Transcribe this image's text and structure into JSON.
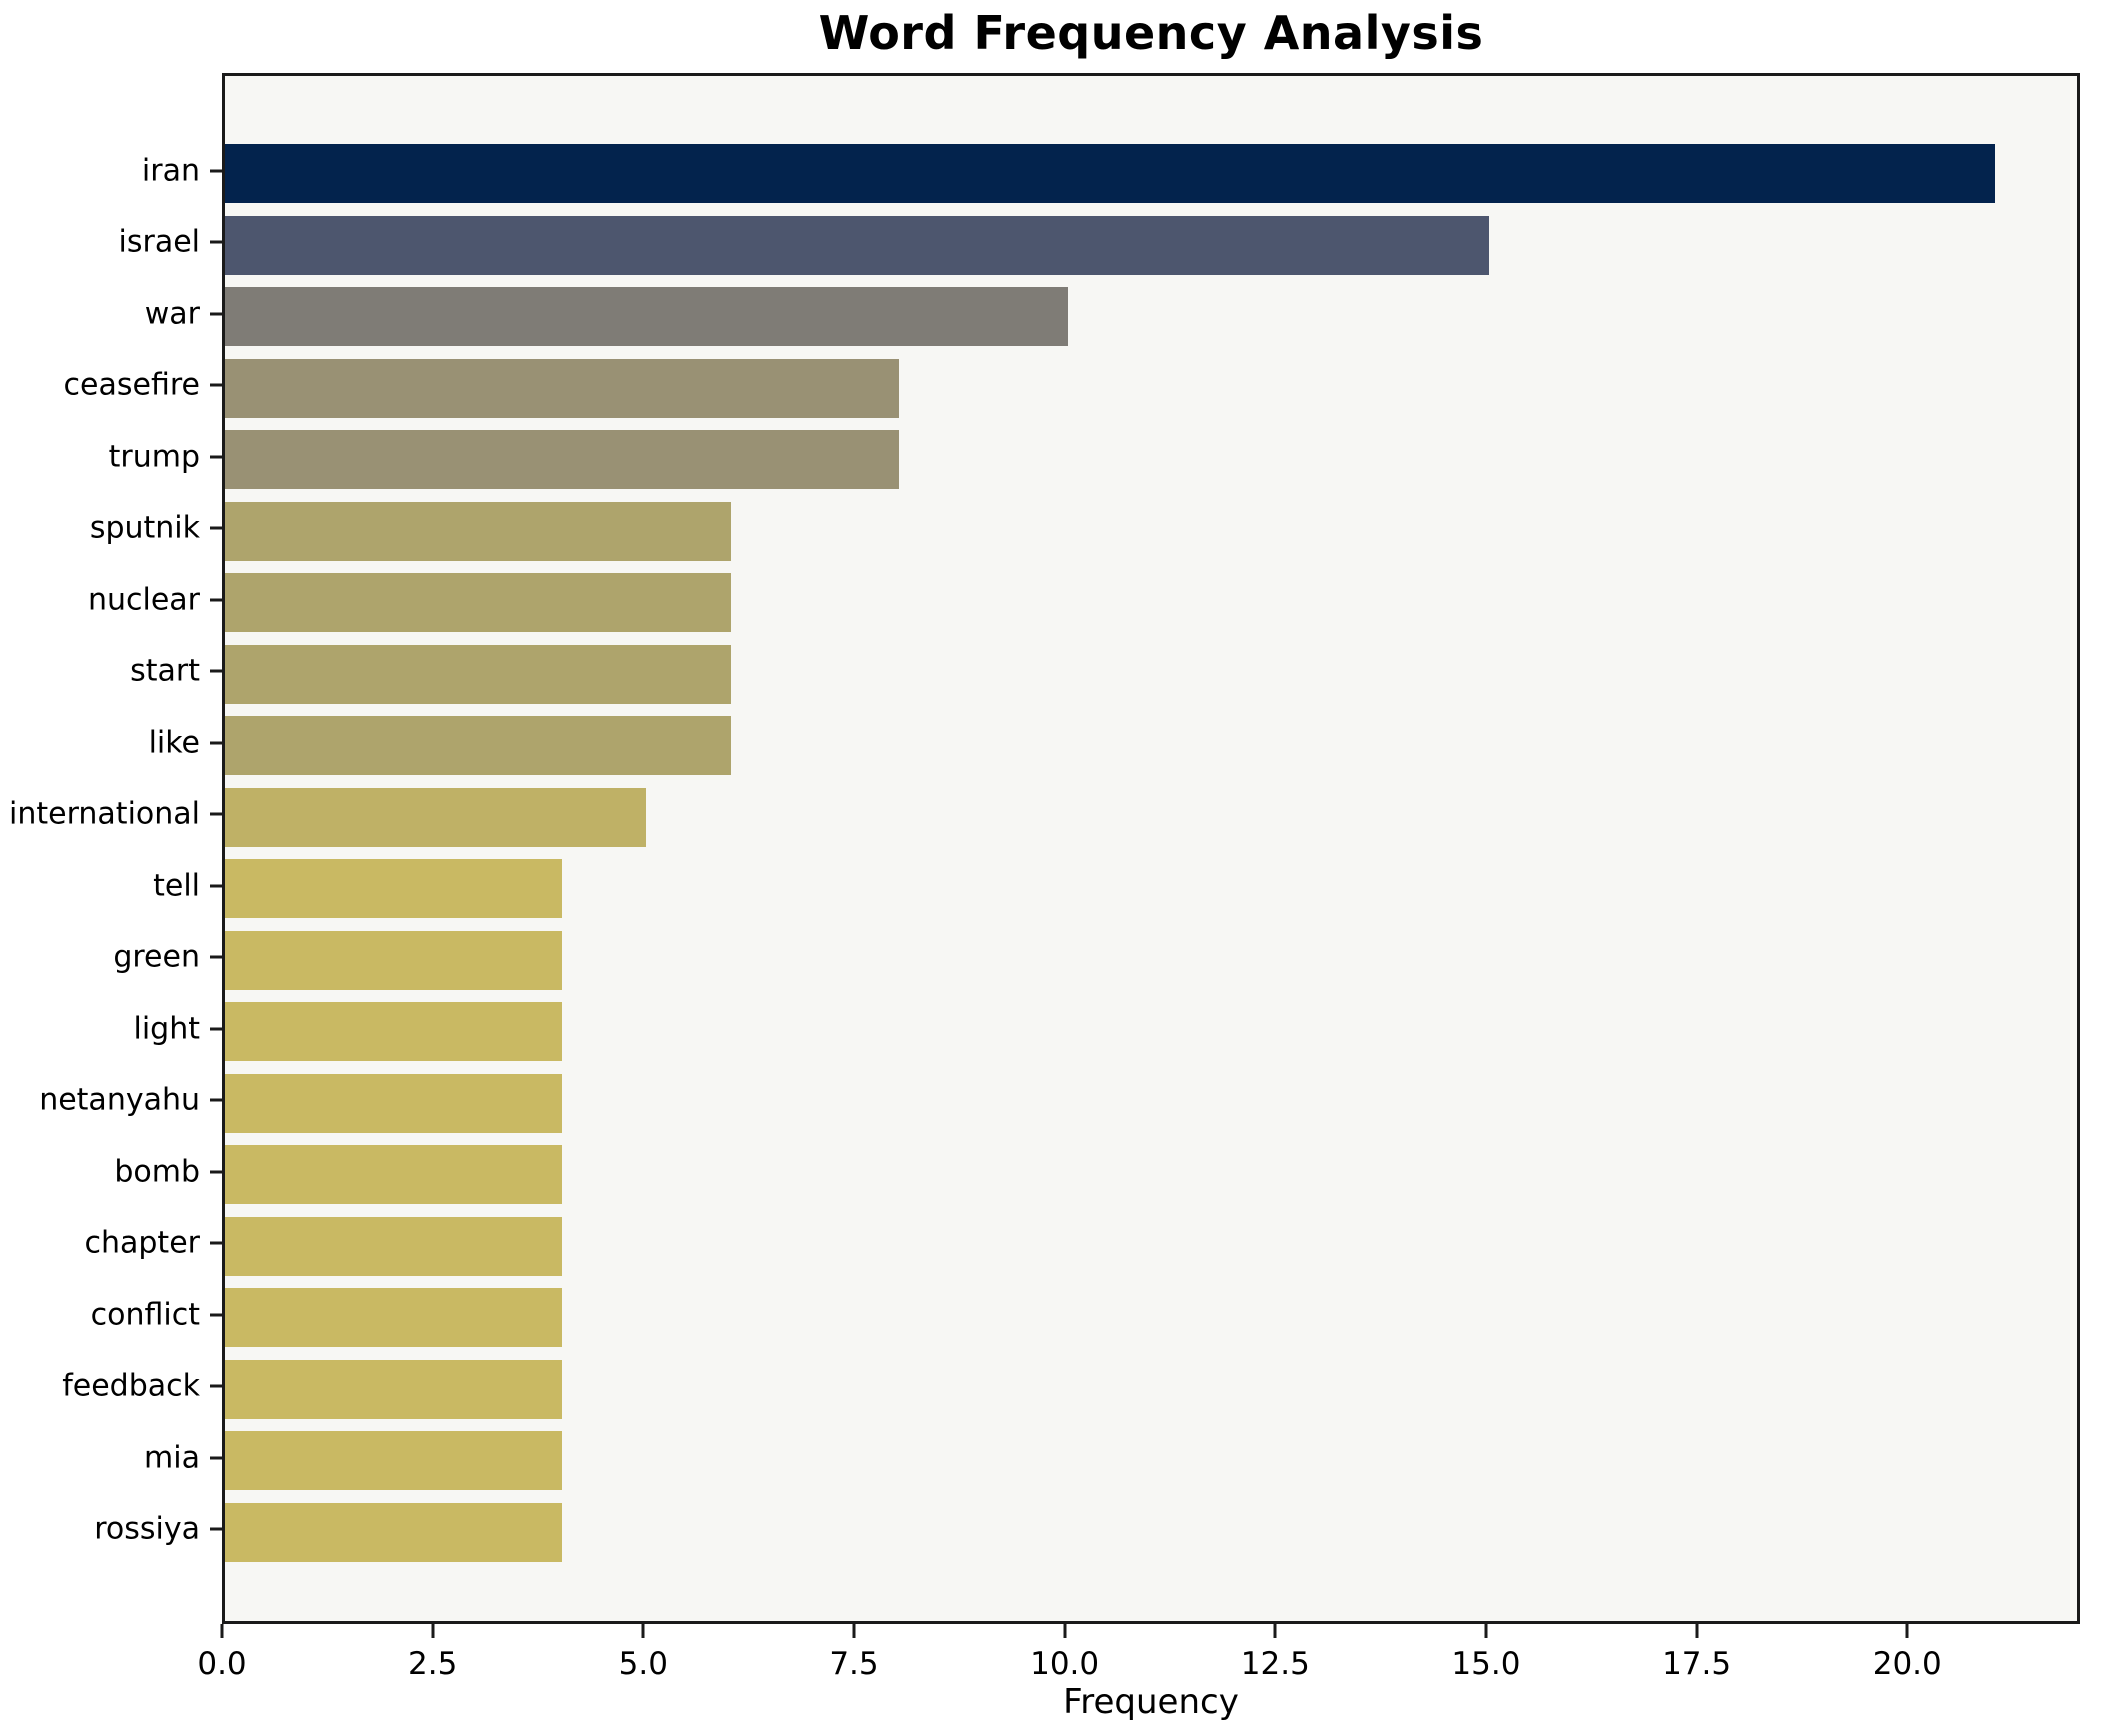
{
  "chart_data": {
    "type": "bar",
    "orientation": "horizontal",
    "title": "Word Frequency Analysis",
    "xlabel": "Frequency",
    "ylabel": "",
    "categories": [
      "iran",
      "israel",
      "war",
      "ceasefire",
      "trump",
      "sputnik",
      "nuclear",
      "start",
      "like",
      "international",
      "tell",
      "green",
      "light",
      "netanyahu",
      "bomb",
      "chapter",
      "conflict",
      "feedback",
      "mia",
      "rossiya"
    ],
    "values": [
      21,
      15,
      10,
      8,
      8,
      6,
      6,
      6,
      6,
      5,
      4,
      4,
      4,
      4,
      4,
      4,
      4,
      4,
      4,
      4
    ],
    "bar_colors": [
      "#03234d",
      "#4d566e",
      "#7f7c76",
      "#999174",
      "#999174",
      "#aea46c",
      "#aea46c",
      "#aea46c",
      "#aea46c",
      "#bfb166",
      "#c9b963",
      "#c9b963",
      "#c9b963",
      "#c9b963",
      "#c9b963",
      "#c9b963",
      "#c9b963",
      "#c9b963",
      "#c9b963",
      "#c9b963"
    ],
    "x_ticks": [
      0.0,
      2.5,
      5.0,
      7.5,
      10.0,
      12.5,
      15.0,
      17.5,
      20.0
    ],
    "x_tick_labels": [
      "0.0",
      "2.5",
      "5.0",
      "7.5",
      "10.0",
      "12.5",
      "15.0",
      "17.5",
      "20.0"
    ],
    "xlim": [
      0,
      22.05
    ],
    "grid": false,
    "legend": null,
    "colors": {
      "figure_background": "#ffffff",
      "plot_background": "#f7f7f4",
      "spine": "#1a1a1a",
      "text": "#000000"
    }
  }
}
